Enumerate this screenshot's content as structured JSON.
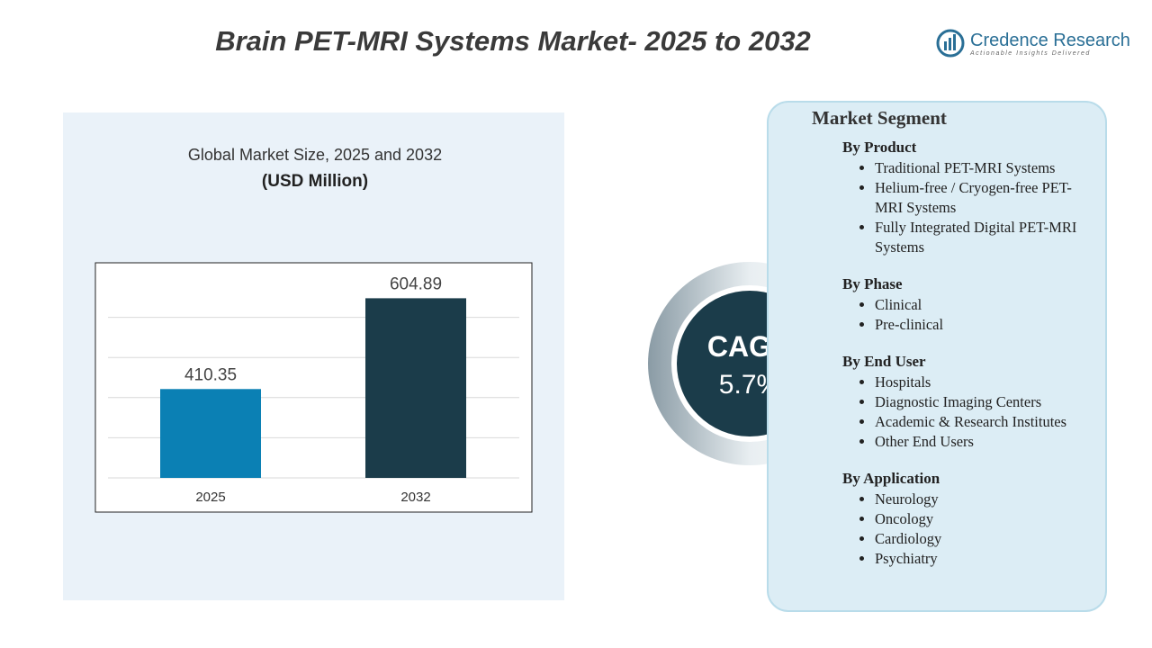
{
  "header": {
    "title": "Brain PET-MRI Systems Market- 2025 to 2032",
    "logo_name": "Credence Research",
    "logo_tagline": "Actionable Insights Delivered"
  },
  "chart_data": {
    "type": "bar",
    "title": "Global Market Size, 2025 and 2032",
    "subtitle": "(USD Million)",
    "categories": [
      "2025",
      "2032"
    ],
    "values": [
      410.35,
      604.89
    ],
    "colors": [
      "#0b80b4",
      "#1b3c4a"
    ],
    "ylim": [
      220,
      650
    ],
    "grid": true
  },
  "cagr": {
    "label": "CAGR",
    "value": "5.7%"
  },
  "market_segment": {
    "title": "Market Segment",
    "groups": [
      {
        "heading": "By Product",
        "items": [
          "Traditional PET-MRI Systems",
          "Helium-free / Cryogen-free PET-MRI Systems",
          "Fully Integrated Digital PET-MRI Systems"
        ]
      },
      {
        "heading": "By Phase",
        "items": [
          "Clinical",
          "Pre-clinical"
        ]
      },
      {
        "heading": "By End User",
        "items": [
          "Hospitals",
          "Diagnostic Imaging Centers",
          "Academic & Research Institutes",
          "Other End Users"
        ]
      },
      {
        "heading": "By Application",
        "items": [
          "Neurology",
          "Oncology",
          "Cardiology",
          "Psychiatry"
        ]
      }
    ]
  }
}
